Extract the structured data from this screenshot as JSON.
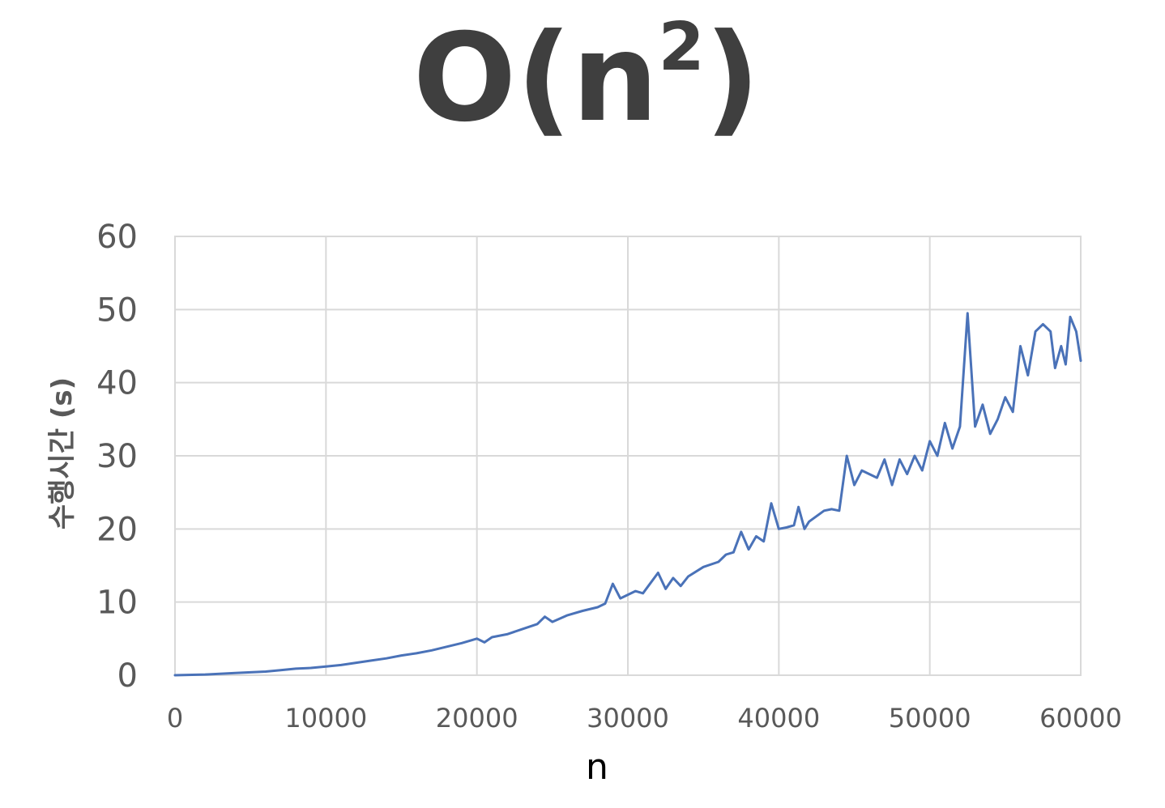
{
  "title": {
    "base": "O(n",
    "superscript": "2",
    "close": ")"
  },
  "chart_data": {
    "type": "line",
    "title": "O(n2)",
    "xlabel": "n",
    "ylabel": "수행시간 (s)",
    "xlim": [
      0,
      60000
    ],
    "ylim": [
      0,
      60
    ],
    "xticks": [
      "0",
      "10000",
      "20000",
      "30000",
      "40000",
      "50000",
      "60000"
    ],
    "yticks": [
      "0",
      "10",
      "20",
      "30",
      "40",
      "50",
      "60"
    ],
    "grid": true,
    "legend": "none",
    "series_color": "#4a72b8",
    "series": [
      {
        "x": [
          0,
          2000,
          4000,
          6000,
          7000,
          8000,
          9000,
          10000,
          11000,
          12000,
          13000,
          14000,
          15000,
          16000,
          17000,
          18000,
          19000,
          20000,
          20500,
          21000,
          22000,
          23000,
          24000,
          24500,
          25000,
          26000,
          27000,
          28000,
          28500,
          29000,
          29500,
          30000,
          30500,
          31000,
          32000,
          32500,
          33000,
          33500,
          34000,
          35000,
          36000,
          36500,
          37000,
          37500,
          38000,
          38500,
          39000,
          39500,
          40000,
          40500,
          41000,
          41300,
          41700,
          42000,
          43000,
          43500,
          44000,
          44500,
          45000,
          45500,
          46000,
          46500,
          47000,
          47500,
          48000,
          48500,
          49000,
          49500,
          50000,
          50500,
          51000,
          51500,
          52000,
          52500,
          53000,
          53500,
          54000,
          54500,
          55000,
          55500,
          56000,
          56500,
          57000,
          57500,
          58000,
          58300,
          58700,
          59000,
          59300,
          59700,
          60000
        ],
        "y": [
          0,
          0.1,
          0.3,
          0.5,
          0.7,
          0.9,
          1.0,
          1.2,
          1.4,
          1.7,
          2.0,
          2.3,
          2.7,
          3.0,
          3.4,
          3.9,
          4.4,
          5.0,
          4.5,
          5.2,
          5.6,
          6.3,
          7.0,
          8.0,
          7.3,
          8.2,
          8.8,
          9.3,
          9.8,
          12.5,
          10.5,
          11.0,
          11.5,
          11.2,
          14.0,
          11.8,
          13.3,
          12.2,
          13.5,
          14.8,
          15.5,
          16.5,
          16.8,
          19.6,
          17.2,
          19.0,
          18.3,
          23.5,
          20.0,
          20.2,
          20.5,
          23.0,
          20.0,
          21.0,
          22.5,
          22.7,
          22.5,
          30.0,
          26.0,
          28.0,
          27.5,
          27.0,
          29.5,
          26.0,
          29.5,
          27.5,
          30.0,
          28.0,
          32.0,
          30.0,
          34.5,
          31.0,
          34.0,
          49.5,
          34.0,
          37.0,
          33.0,
          35.0,
          38.0,
          36.0,
          45.0,
          41.0,
          47.0,
          48.0,
          47.0,
          42.0,
          45.0,
          42.5,
          49.0,
          47.0,
          43.0
        ]
      }
    ]
  }
}
